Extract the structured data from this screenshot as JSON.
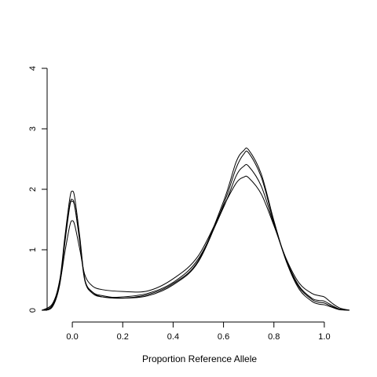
{
  "chart_data": {
    "type": "line",
    "title": "",
    "xlabel": "Proportion Reference Allele",
    "ylabel": "",
    "xlim": [
      -0.1,
      1.1
    ],
    "ylim": [
      0,
      4
    ],
    "x_ticks": [
      0.0,
      0.2,
      0.4,
      0.6,
      0.8,
      1.0
    ],
    "x_tick_labels": [
      "0.0",
      "0.2",
      "0.4",
      "0.6",
      "0.8",
      "1.0"
    ],
    "y_ticks": [
      0,
      1,
      2,
      3,
      4
    ],
    "y_tick_labels": [
      "0",
      "1",
      "2",
      "3",
      "4"
    ],
    "grid": false,
    "line_color": "#000000",
    "series": [
      {
        "x": [
          -0.12,
          -0.08,
          -0.05,
          -0.03,
          -0.01,
          0.0,
          0.01,
          0.03,
          0.05,
          0.08,
          0.12,
          0.2,
          0.3,
          0.4,
          0.5,
          0.6,
          0.65,
          0.68,
          0.7,
          0.75,
          0.8,
          0.85,
          0.9,
          0.95,
          0.98,
          1.0,
          1.03,
          1.06,
          1.1
        ],
        "y": [
          0.0,
          0.08,
          0.5,
          1.2,
          1.85,
          1.97,
          1.85,
          1.2,
          0.5,
          0.3,
          0.24,
          0.2,
          0.24,
          0.42,
          0.8,
          1.75,
          2.35,
          2.58,
          2.6,
          2.2,
          1.45,
          0.8,
          0.38,
          0.18,
          0.13,
          0.12,
          0.06,
          0.02,
          0.0
        ]
      },
      {
        "x": [
          -0.12,
          -0.08,
          -0.05,
          -0.03,
          -0.01,
          0.0,
          0.01,
          0.03,
          0.05,
          0.08,
          0.12,
          0.2,
          0.3,
          0.4,
          0.5,
          0.6,
          0.65,
          0.68,
          0.7,
          0.75,
          0.8,
          0.85,
          0.9,
          0.95,
          0.98,
          1.0,
          1.03,
          1.06,
          1.1
        ],
        "y": [
          0.0,
          0.06,
          0.45,
          1.15,
          1.75,
          1.83,
          1.72,
          1.15,
          0.5,
          0.3,
          0.22,
          0.2,
          0.26,
          0.44,
          0.82,
          1.8,
          2.45,
          2.64,
          2.65,
          2.25,
          1.48,
          0.8,
          0.35,
          0.15,
          0.1,
          0.09,
          0.05,
          0.01,
          0.0
        ]
      },
      {
        "x": [
          -0.12,
          -0.08,
          -0.05,
          -0.03,
          -0.01,
          0.0,
          0.01,
          0.03,
          0.05,
          0.08,
          0.12,
          0.2,
          0.3,
          0.4,
          0.5,
          0.6,
          0.65,
          0.68,
          0.7,
          0.75,
          0.8,
          0.85,
          0.9,
          0.95,
          0.98,
          1.0,
          1.03,
          1.06,
          1.1
        ],
        "y": [
          0.0,
          0.05,
          0.42,
          1.1,
          1.72,
          1.8,
          1.7,
          1.12,
          0.48,
          0.28,
          0.22,
          0.22,
          0.28,
          0.46,
          0.85,
          1.7,
          2.22,
          2.38,
          2.38,
          2.05,
          1.42,
          0.82,
          0.4,
          0.2,
          0.16,
          0.15,
          0.08,
          0.02,
          0.0
        ]
      },
      {
        "x": [
          -0.12,
          -0.08,
          -0.05,
          -0.03,
          -0.01,
          0.0,
          0.01,
          0.03,
          0.05,
          0.08,
          0.12,
          0.2,
          0.3,
          0.4,
          0.5,
          0.6,
          0.65,
          0.68,
          0.7,
          0.75,
          0.8,
          0.85,
          0.9,
          0.95,
          0.98,
          1.0,
          1.03,
          1.06,
          1.1
        ],
        "y": [
          0.0,
          0.1,
          0.45,
          0.95,
          1.4,
          1.48,
          1.4,
          1.0,
          0.58,
          0.4,
          0.34,
          0.31,
          0.32,
          0.52,
          0.9,
          1.72,
          2.1,
          2.2,
          2.19,
          1.92,
          1.4,
          0.84,
          0.45,
          0.28,
          0.24,
          0.22,
          0.12,
          0.04,
          0.0
        ]
      }
    ]
  }
}
